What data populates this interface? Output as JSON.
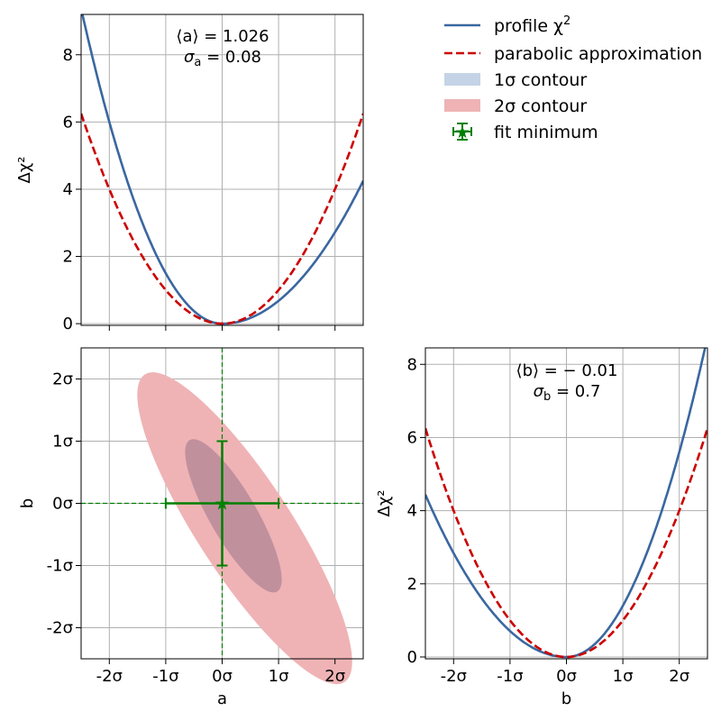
{
  "chart_data": [
    {
      "panel": "top-left",
      "type": "line",
      "ylabel": "Δχ²",
      "xlim": [
        -2.5,
        2.5
      ],
      "ylim": [
        -0.05,
        9.2
      ],
      "x_ticks": [
        -2,
        -1,
        0,
        1,
        2
      ],
      "y_ticks": [
        0,
        2,
        4,
        6,
        8
      ],
      "y_tick_labels": [
        "0",
        "2",
        "4",
        "6",
        "8"
      ],
      "grid": true,
      "annotation": {
        "line1": "⟨a⟩ = 1.026",
        "line2_symbol": "σ",
        "line2_sub": "a",
        "line2_value": " = 0.08"
      },
      "series": [
        {
          "name": "profile χ²",
          "color": "#3a67a0",
          "asym_left": 1.5,
          "asym_right": 0.68,
          "x_range": [
            -2.5,
            2.5
          ]
        },
        {
          "name": "parabolic approximation",
          "color": "#cc0000",
          "dash": "dashed",
          "x_range": [
            -2.5,
            2.5
          ]
        }
      ]
    },
    {
      "panel": "bottom-left",
      "type": "contour",
      "xlabel": "a",
      "ylabel": "b",
      "xlim": [
        -2.5,
        2.5
      ],
      "ylim": [
        -2.5,
        2.5
      ],
      "x_ticks": [
        -2,
        -1,
        0,
        1,
        2
      ],
      "x_tick_labels": [
        "-2σ",
        "-1σ",
        "0σ",
        "1σ",
        "2σ"
      ],
      "y_ticks": [
        -2,
        -1,
        0,
        1,
        2
      ],
      "y_tick_labels": [
        "-2σ",
        "-1σ",
        "0σ",
        "1σ",
        "2σ"
      ],
      "grid": true,
      "contours": [
        {
          "name": "2σ contour",
          "color": "#efb3b5",
          "center": [
            0.4,
            -0.4
          ],
          "semi_major": 3.25,
          "semi_minor": 0.76,
          "angle_deg": -57
        },
        {
          "name": "1σ contour",
          "color": "#c4d3e6",
          "blend": "#c0909d",
          "center": [
            0.2,
            -0.2
          ],
          "semi_major": 1.55,
          "semi_minor": 0.38,
          "angle_deg": -60
        }
      ],
      "fit_minimum": {
        "a": 0,
        "b": 0,
        "a_err": 1,
        "b_err": 1,
        "color": "#008000"
      },
      "crosshair": {
        "a": 0,
        "b": 0,
        "color": "#008000"
      }
    },
    {
      "panel": "bottom-right",
      "type": "line",
      "xlabel": "b",
      "ylabel": "Δχ²",
      "xlim": [
        -2.5,
        2.5
      ],
      "ylim": [
        -0.05,
        8.45
      ],
      "x_ticks": [
        -2,
        -1,
        0,
        1,
        2
      ],
      "x_tick_labels": [
        "-2σ",
        "-1σ",
        "0σ",
        "1σ",
        "2σ"
      ],
      "y_ticks": [
        0,
        2,
        4,
        6,
        8
      ],
      "y_tick_labels": [
        "0",
        "2",
        "4",
        "6",
        "8"
      ],
      "grid": true,
      "annotation": {
        "line1": "⟨b⟩ = − 0.01",
        "line2_symbol": "σ",
        "line2_sub": "b",
        "line2_value": " = 0.7"
      },
      "series": [
        {
          "name": "profile χ²",
          "color": "#3a67a0",
          "asym_left": 0.71,
          "asym_right": 1.4,
          "x_range": [
            -2.5,
            2.5
          ]
        },
        {
          "name": "parabolic approximation",
          "color": "#cc0000",
          "dash": "dashed",
          "x_range": [
            -2.5,
            2.5
          ]
        }
      ]
    }
  ],
  "legend": {
    "placement": "top-right",
    "entries": [
      {
        "label": "profile χ",
        "sup": "2",
        "kind": "line",
        "color": "#3a67a0"
      },
      {
        "label": "parabolic approximation",
        "kind": "dashed",
        "color": "#cc0000"
      },
      {
        "label": "1σ contour",
        "kind": "patch",
        "color": "#c4d3e6"
      },
      {
        "label": "2σ contour",
        "kind": "patch",
        "color": "#efb3b5"
      },
      {
        "label": "fit minimum",
        "kind": "marker",
        "color": "#008000"
      }
    ]
  }
}
